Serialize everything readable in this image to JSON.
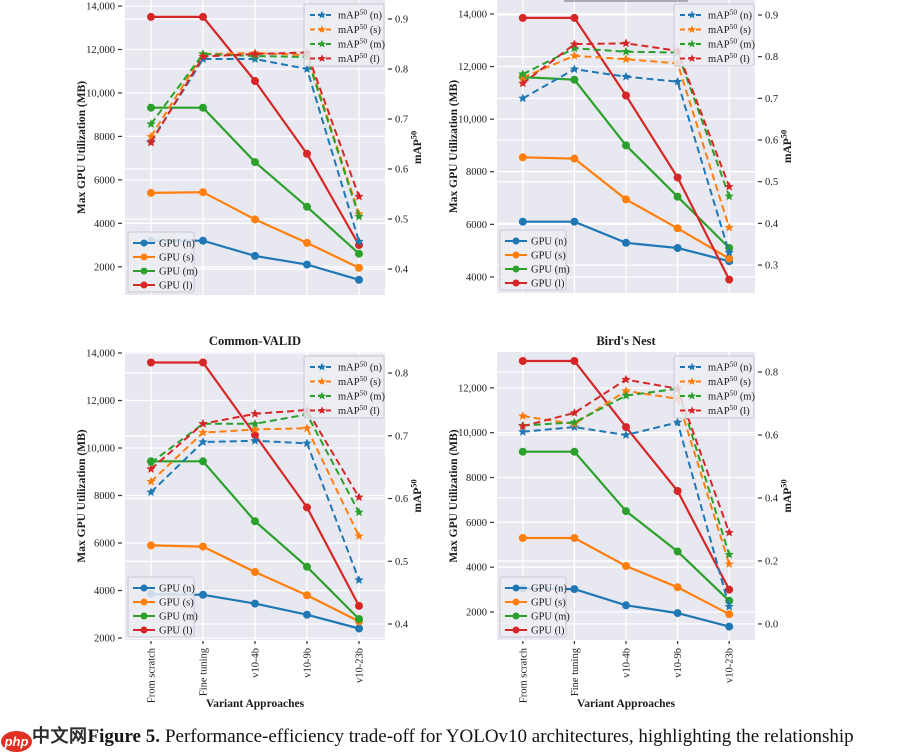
{
  "figure": {
    "caption": {
      "label": "Figure 5.",
      "text": "Performance-efficiency trade-off for YOLOv10 architectures, highlighting the relationship"
    },
    "watermark": {
      "logo": "php",
      "text": "中文网"
    }
  },
  "shared": {
    "categories": [
      "From scratch",
      "Fine tuning",
      "v10-4b",
      "v10-9b",
      "v10-23b"
    ],
    "xlabel": "Variant Approaches",
    "colors": {
      "n": "#1f77b4",
      "s": "#ff7f0e",
      "m": "#2ca02c",
      "l": "#d62728"
    }
  },
  "chart_data": [
    {
      "id": "top-left",
      "type": "line",
      "title": "",
      "left_axis": {
        "label": "Max GPU Utilization (MB)",
        "range": [
          700,
          14280
        ],
        "ticks": [
          2000,
          4000,
          6000,
          8000,
          10000,
          12000,
          14000
        ],
        "tick_labels": [
          "2000",
          "4000",
          "6000",
          "8000",
          "10,000",
          "12,000",
          "14,000"
        ]
      },
      "right_axis": {
        "label": "mAP⁵⁰",
        "range": [
          0.348,
          0.938
        ],
        "ticks": [
          0.4,
          0.5,
          0.6,
          0.7,
          0.8,
          0.9
        ],
        "tick_labels": [
          "0.4",
          "0.5",
          "0.6",
          "0.7",
          "0.8",
          "0.9"
        ]
      },
      "gpu_series": [
        {
          "key": "n",
          "name": "GPU (n)",
          "values": [
            3200,
            3200,
            2500,
            2100,
            1400
          ]
        },
        {
          "key": "s",
          "name": "GPU (s)",
          "values": [
            5400,
            5430,
            4180,
            3100,
            1950
          ]
        },
        {
          "key": "m",
          "name": "GPU (m)",
          "values": [
            9320,
            9320,
            6820,
            4760,
            2600
          ]
        },
        {
          "key": "l",
          "name": "GPU (l)",
          "values": [
            13500,
            13500,
            10550,
            7200,
            3000
          ]
        }
      ],
      "map_series": [
        {
          "key": "n",
          "name": "mAP⁵⁰ (n)",
          "values": [
            0.655,
            0.82,
            0.82,
            0.8,
            0.455
          ]
        },
        {
          "key": "s",
          "name": "mAP⁵⁰ (s)",
          "values": [
            0.665,
            0.83,
            0.832,
            0.828,
            0.51
          ]
        },
        {
          "key": "m",
          "name": "mAP⁵⁰ (m)",
          "values": [
            0.69,
            0.83,
            0.826,
            0.824,
            0.505
          ]
        },
        {
          "key": "l",
          "name": "mAP⁵⁰ (l)",
          "values": [
            0.653,
            0.825,
            0.83,
            0.833,
            0.545
          ]
        }
      ]
    },
    {
      "id": "top-right",
      "type": "line",
      "title": "",
      "left_axis": {
        "label": "Max GPU Utilization (MB)",
        "range": [
          3390,
          14530
        ],
        "ticks": [
          4000,
          6000,
          8000,
          10000,
          12000,
          14000
        ],
        "tick_labels": [
          "4000",
          "6000",
          "8000",
          "10,000",
          "12,000",
          "14,000"
        ]
      },
      "right_axis": {
        "label": "mAP⁵⁰",
        "range": [
          0.233,
          0.936
        ],
        "ticks": [
          0.3,
          0.4,
          0.5,
          0.6,
          0.7,
          0.8,
          0.9
        ],
        "tick_labels": [
          "0.3",
          "0.4",
          "0.5",
          "0.6",
          "0.7",
          "0.8",
          "0.9"
        ]
      },
      "gpu_series": [
        {
          "key": "n",
          "name": "GPU (n)",
          "values": [
            6100,
            6100,
            5300,
            5100,
            4600
          ]
        },
        {
          "key": "s",
          "name": "GPU (s)",
          "values": [
            8550,
            8500,
            6950,
            5850,
            4700
          ]
        },
        {
          "key": "m",
          "name": "GPU (m)",
          "values": [
            11600,
            11500,
            9000,
            7050,
            5100
          ]
        },
        {
          "key": "l",
          "name": "GPU (l)",
          "values": [
            13850,
            13850,
            10900,
            7780,
            3900
          ]
        }
      ],
      "map_series": [
        {
          "key": "n",
          "name": "mAP⁵⁰ (n)",
          "values": [
            0.7,
            0.77,
            0.752,
            0.74,
            0.33
          ]
        },
        {
          "key": "s",
          "name": "mAP⁵⁰ (s)",
          "values": [
            0.75,
            0.802,
            0.794,
            0.784,
            0.39
          ]
        },
        {
          "key": "m",
          "name": "mAP⁵⁰ (m)",
          "values": [
            0.758,
            0.82,
            0.812,
            0.81,
            0.465
          ]
        },
        {
          "key": "l",
          "name": "mAP⁵⁰ (l)",
          "values": [
            0.736,
            0.83,
            0.832,
            0.814,
            0.488
          ]
        }
      ]
    },
    {
      "id": "bottom-left",
      "type": "line",
      "title": "Common-VALID",
      "left_axis": {
        "label": "Max GPU Utilization (MB)",
        "range": [
          1916,
          14042
        ],
        "ticks": [
          2000,
          4000,
          6000,
          8000,
          10000,
          12000,
          14000
        ],
        "tick_labels": [
          "2000",
          "4000",
          "6000",
          "8000",
          "10,000",
          "12,000",
          "14,000"
        ]
      },
      "right_axis": {
        "label": "mAP⁵⁰",
        "range": [
          0.3745,
          0.8335
        ],
        "ticks": [
          0.4,
          0.5,
          0.6,
          0.7,
          0.8
        ],
        "tick_labels": [
          "0.4",
          "0.5",
          "0.6",
          "0.7",
          "0.8"
        ]
      },
      "gpu_series": [
        {
          "key": "n",
          "name": "GPU (n)",
          "values": [
            3850,
            3820,
            3450,
            2980,
            2400
          ]
        },
        {
          "key": "s",
          "name": "GPU (s)",
          "values": [
            5900,
            5850,
            4780,
            3800,
            2700
          ]
        },
        {
          "key": "m",
          "name": "GPU (m)",
          "values": [
            9440,
            9440,
            6920,
            5000,
            2800
          ]
        },
        {
          "key": "l",
          "name": "GPU (l)",
          "values": [
            13600,
            13600,
            10550,
            7500,
            3350
          ]
        }
      ],
      "map_series": [
        {
          "key": "n",
          "name": "mAP⁵⁰ (n)",
          "values": [
            0.61,
            0.69,
            0.692,
            0.688,
            0.47
          ]
        },
        {
          "key": "s",
          "name": "mAP⁵⁰ (s)",
          "values": [
            0.627,
            0.705,
            0.71,
            0.712,
            0.54
          ]
        },
        {
          "key": "m",
          "name": "mAP⁵⁰ (m)",
          "values": [
            0.657,
            0.719,
            0.719,
            0.734,
            0.578
          ]
        },
        {
          "key": "l",
          "name": "mAP⁵⁰ (l)",
          "values": [
            0.647,
            0.719,
            0.735,
            0.741,
            0.602
          ]
        }
      ]
    },
    {
      "id": "bottom-right",
      "type": "line",
      "title": "Bird's Nest",
      "left_axis": {
        "label": "Max GPU Utilization (MB)",
        "range": [
          750,
          13600
        ],
        "ticks": [
          2000,
          4000,
          6000,
          8000,
          10000,
          12000
        ],
        "tick_labels": [
          "2000",
          "4000",
          "6000",
          "8000",
          "10,000",
          "12,000"
        ]
      },
      "right_axis": {
        "label": "mAP⁵⁰",
        "range": [
          -0.051,
          0.8635
        ],
        "ticks": [
          0.0,
          0.2,
          0.4,
          0.6,
          0.8
        ],
        "tick_labels": [
          "0.0",
          "0.2",
          "0.4",
          "0.6",
          "0.8"
        ]
      },
      "gpu_series": [
        {
          "key": "n",
          "name": "GPU (n)",
          "values": [
            3050,
            3020,
            2300,
            1950,
            1350
          ]
        },
        {
          "key": "s",
          "name": "GPU (s)",
          "values": [
            5300,
            5300,
            4050,
            3100,
            1900
          ]
        },
        {
          "key": "m",
          "name": "GPU (m)",
          "values": [
            9150,
            9150,
            6500,
            4700,
            2500
          ]
        },
        {
          "key": "l",
          "name": "GPU (l)",
          "values": [
            13200,
            13200,
            10250,
            7400,
            3000
          ]
        }
      ],
      "map_series": [
        {
          "key": "n",
          "name": "mAP⁵⁰ (n)",
          "values": [
            0.61,
            0.625,
            0.6,
            0.64,
            0.055
          ]
        },
        {
          "key": "s",
          "name": "mAP⁵⁰ (s)",
          "values": [
            0.66,
            0.635,
            0.74,
            0.715,
            0.19
          ]
        },
        {
          "key": "m",
          "name": "mAP⁵⁰ (m)",
          "values": [
            0.63,
            0.64,
            0.725,
            0.747,
            0.22
          ]
        },
        {
          "key": "l",
          "name": "mAP⁵⁰ (l)",
          "values": [
            0.628,
            0.67,
            0.776,
            0.747,
            0.29
          ]
        }
      ]
    }
  ]
}
